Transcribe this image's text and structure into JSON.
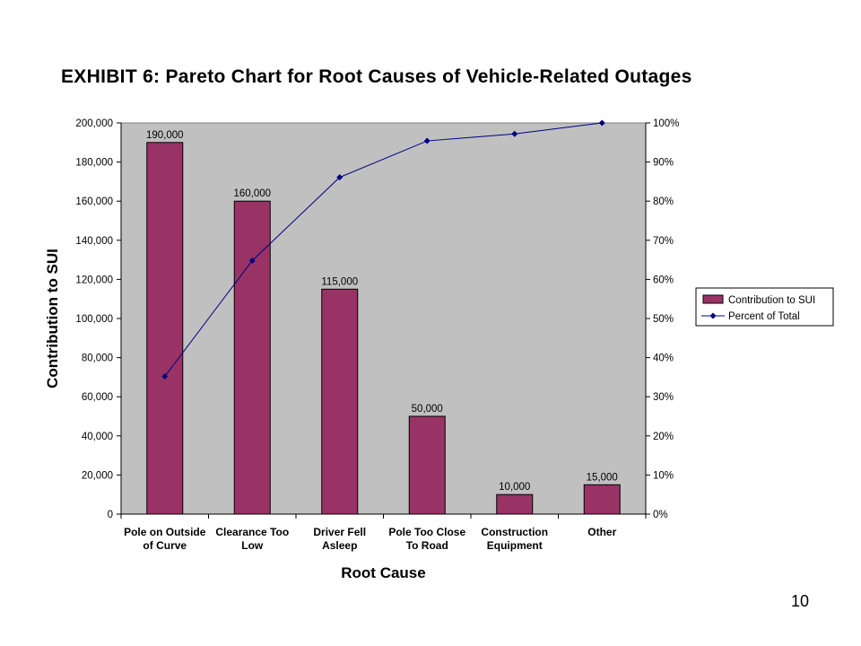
{
  "title": "EXHIBIT 6:  Pareto Chart for Root Causes of Vehicle-Related Outages",
  "page_number": "10",
  "colors": {
    "bar": "#993366",
    "line": "#000080",
    "plot_background": "#c0c0c0"
  },
  "chart_data": {
    "type": "bar",
    "title": "EXHIBIT 6:  Pareto Chart for Root Causes of Vehicle-Related Outages",
    "xlabel": "Root Cause",
    "ylabel": "Contribution to SUI",
    "categories": [
      [
        "Pole on Outside",
        "of Curve"
      ],
      [
        "Clearance Too",
        "Low"
      ],
      [
        "Driver Fell",
        "Asleep"
      ],
      [
        "Pole Too Close",
        "To Road"
      ],
      [
        "Construction",
        "Equipment"
      ],
      [
        "Other"
      ]
    ],
    "series": [
      {
        "name": "Contribution to SUI",
        "type": "bar",
        "axis": "left",
        "values": [
          190000,
          160000,
          115000,
          50000,
          10000,
          15000
        ],
        "data_labels": [
          "190,000",
          "160,000",
          "115,000",
          "50,000",
          "10,000",
          "15,000"
        ]
      },
      {
        "name": "Percent of Total",
        "type": "line",
        "axis": "right",
        "values": [
          35.2,
          64.8,
          86.1,
          95.4,
          97.2,
          100
        ]
      }
    ],
    "ylim": [
      0,
      200000
    ],
    "yticks": [
      "0",
      "20,000",
      "40,000",
      "60,000",
      "80,000",
      "100,000",
      "120,000",
      "140,000",
      "160,000",
      "180,000",
      "200,000"
    ],
    "y2lim": [
      0,
      100
    ],
    "y2ticks": [
      "0%",
      "10%",
      "20%",
      "30%",
      "40%",
      "50%",
      "60%",
      "70%",
      "80%",
      "90%",
      "100%"
    ],
    "grid": false,
    "legend": {
      "position": "right",
      "entries": [
        "Contribution to SUI",
        "Percent of Total"
      ]
    }
  }
}
